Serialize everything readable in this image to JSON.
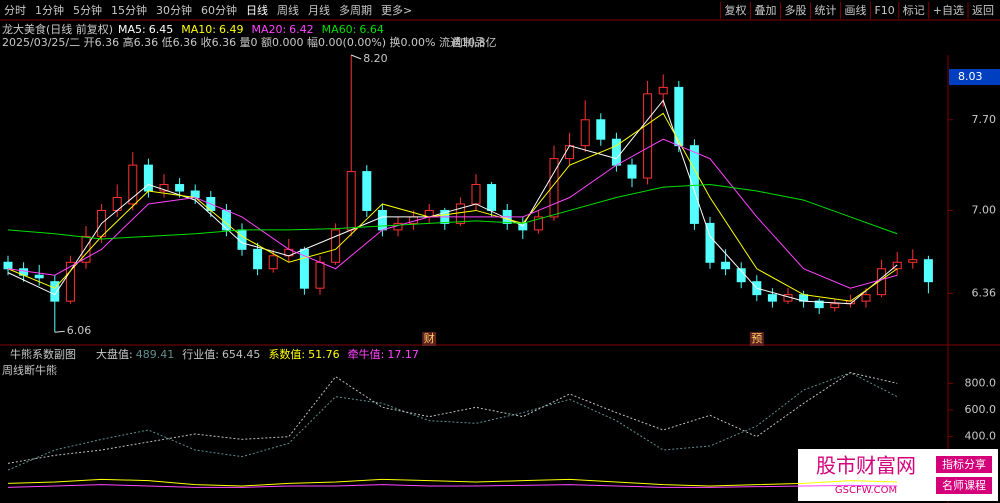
{
  "toolbar": {
    "periods": [
      "分时",
      "1分钟",
      "5分钟",
      "15分钟",
      "30分钟",
      "60分钟",
      "日线",
      "周线",
      "月线",
      "多周期",
      "更多>"
    ],
    "active": 6,
    "actions": [
      "复权",
      "叠加",
      "多股",
      "统计",
      "画线",
      "F10",
      "标记",
      "+自选",
      "返回"
    ]
  },
  "header": {
    "stock": "龙大美食(日线 前复权)",
    "ma_legend": [
      {
        "label": "MA5:",
        "value": 6.45,
        "color": "#ffffff"
      },
      {
        "label": "MA10:",
        "value": 6.49,
        "color": "#ffff00"
      },
      {
        "label": "MA20:",
        "value": 6.42,
        "color": "#ff44ff"
      },
      {
        "label": "MA60:",
        "value": 6.64,
        "color": "#00e000"
      }
    ],
    "quote": "2025/03/25/二 开6.36 高6.36 低6.36 收6.36 量0 额0.000 幅0.00(0.00%) 换0.00% 流通10.8亿",
    "sector": "肉制品"
  },
  "main": {
    "type": "candlestick",
    "ylim": [
      6.0,
      8.2
    ],
    "yticks": [
      {
        "value": 7.7,
        "label": "7.70"
      },
      {
        "value": 7.0,
        "label": "7.00"
      },
      6.36
    ],
    "price_tag": 8.03,
    "up_color": "#ff3232",
    "down_color": "#54ffff",
    "candles": [
      [
        6.6,
        6.65,
        6.5,
        6.55
      ],
      [
        6.55,
        6.6,
        6.45,
        6.5
      ],
      [
        6.5,
        6.58,
        6.42,
        6.48
      ],
      [
        6.45,
        6.5,
        6.06,
        6.3
      ],
      [
        6.3,
        6.65,
        6.28,
        6.6
      ],
      [
        6.6,
        6.88,
        6.55,
        6.8
      ],
      [
        6.8,
        7.05,
        6.75,
        7.0
      ],
      [
        7.0,
        7.2,
        6.95,
        7.1
      ],
      [
        7.05,
        7.45,
        7.0,
        7.35
      ],
      [
        7.35,
        7.4,
        7.1,
        7.15
      ],
      [
        7.15,
        7.28,
        7.1,
        7.2
      ],
      [
        7.2,
        7.25,
        7.1,
        7.15
      ],
      [
        7.15,
        7.2,
        7.05,
        7.1
      ],
      [
        7.1,
        7.15,
        6.95,
        7.0
      ],
      [
        7.0,
        7.05,
        6.8,
        6.85
      ],
      [
        6.85,
        6.9,
        6.65,
        6.7
      ],
      [
        6.7,
        6.75,
        6.5,
        6.55
      ],
      [
        6.55,
        6.7,
        6.52,
        6.65
      ],
      [
        6.65,
        6.78,
        6.6,
        6.7
      ],
      [
        6.7,
        6.72,
        6.35,
        6.4
      ],
      [
        6.4,
        6.65,
        6.35,
        6.6
      ],
      [
        6.6,
        6.9,
        6.58,
        6.85
      ],
      [
        6.85,
        8.2,
        6.8,
        7.3
      ],
      [
        7.3,
        7.35,
        6.95,
        7.0
      ],
      [
        7.0,
        7.05,
        6.8,
        6.85
      ],
      [
        6.85,
        6.95,
        6.8,
        6.9
      ],
      [
        6.9,
        7.0,
        6.85,
        6.95
      ],
      [
        6.95,
        7.05,
        6.9,
        7.0
      ],
      [
        7.0,
        7.02,
        6.85,
        6.9
      ],
      [
        6.9,
        7.1,
        6.88,
        7.05
      ],
      [
        7.05,
        7.28,
        7.0,
        7.2
      ],
      [
        7.2,
        7.22,
        6.95,
        7.0
      ],
      [
        7.0,
        7.05,
        6.85,
        6.9
      ],
      [
        6.9,
        6.95,
        6.78,
        6.85
      ],
      [
        6.85,
        7.0,
        6.82,
        6.95
      ],
      [
        6.95,
        7.5,
        6.92,
        7.4
      ],
      [
        7.4,
        7.6,
        7.35,
        7.5
      ],
      [
        7.5,
        7.85,
        7.45,
        7.7
      ],
      [
        7.7,
        7.75,
        7.5,
        7.55
      ],
      [
        7.55,
        7.6,
        7.3,
        7.35
      ],
      [
        7.35,
        7.4,
        7.18,
        7.25
      ],
      [
        7.25,
        8.0,
        7.2,
        7.9
      ],
      [
        7.9,
        8.05,
        7.8,
        7.95
      ],
      [
        7.95,
        8.0,
        7.45,
        7.5
      ],
      [
        7.5,
        7.55,
        6.85,
        6.9
      ],
      [
        6.9,
        6.95,
        6.55,
        6.6
      ],
      [
        6.6,
        6.7,
        6.5,
        6.55
      ],
      [
        6.55,
        6.6,
        6.4,
        6.45
      ],
      [
        6.45,
        6.5,
        6.3,
        6.35
      ],
      [
        6.35,
        6.4,
        6.25,
        6.3
      ],
      [
        6.3,
        6.4,
        6.28,
        6.35
      ],
      [
        6.35,
        6.38,
        6.25,
        6.3
      ],
      [
        6.3,
        6.32,
        6.2,
        6.25
      ],
      [
        6.25,
        6.32,
        6.22,
        6.28
      ],
      [
        6.28,
        6.35,
        6.25,
        6.3
      ],
      [
        6.3,
        6.4,
        6.25,
        6.35
      ],
      [
        6.35,
        6.62,
        6.33,
        6.55
      ],
      [
        6.55,
        6.68,
        6.5,
        6.6
      ],
      [
        6.6,
        6.7,
        6.55,
        6.62
      ],
      [
        6.62,
        6.65,
        6.36,
        6.45
      ]
    ],
    "ma": {
      "x": [
        0,
        3,
        6,
        9,
        12,
        15,
        18,
        21,
        24,
        27,
        30,
        33,
        36,
        39,
        42,
        45,
        48,
        51,
        54,
        57
      ],
      "series": [
        {
          "color": "#ffffff",
          "values": [
            6.52,
            6.35,
            6.9,
            7.2,
            7.08,
            6.75,
            6.65,
            6.8,
            6.95,
            6.95,
            7.05,
            6.88,
            7.5,
            7.4,
            7.85,
            6.8,
            6.4,
            6.3,
            6.28,
            6.58
          ]
        },
        {
          "color": "#ffff00",
          "values": [
            6.55,
            6.4,
            6.8,
            7.15,
            7.1,
            6.8,
            6.6,
            6.7,
            7.05,
            6.95,
            7.0,
            6.9,
            7.35,
            7.5,
            7.75,
            7.1,
            6.55,
            6.35,
            6.3,
            6.55
          ]
        },
        {
          "color": "#ff44ff",
          "values": [
            6.55,
            6.5,
            6.7,
            7.05,
            7.1,
            6.95,
            6.7,
            6.55,
            6.85,
            6.95,
            6.95,
            6.95,
            7.1,
            7.35,
            7.55,
            7.4,
            6.95,
            6.55,
            6.4,
            6.5
          ]
        },
        {
          "color": "#00e000",
          "values": [
            6.85,
            6.82,
            6.78,
            6.8,
            6.82,
            6.85,
            6.85,
            6.86,
            6.88,
            6.9,
            6.92,
            6.9,
            7.0,
            7.1,
            7.18,
            7.2,
            7.15,
            7.08,
            6.95,
            6.82
          ]
        }
      ]
    },
    "annotations": [
      {
        "index": 22,
        "value": 8.2,
        "label": "8.20"
      },
      {
        "index": 3,
        "value": 6.06
      }
    ],
    "markers": [
      {
        "index": 27,
        "label": "财"
      },
      {
        "index": 48,
        "label": "预"
      }
    ]
  },
  "sub": {
    "type": "line",
    "title": "牛熊系数副图",
    "subtitle": "周线断牛熊",
    "ylim": [
      0,
      1050
    ],
    "yticks": [
      {
        "value": 800,
        "label": "800.0"
      },
      {
        "value": 600,
        "label": "600.0"
      },
      {
        "value": 400,
        "label": "400.0"
      }
    ],
    "legend": [
      {
        "label": "大盘值:",
        "value": 489.41,
        "color": "#5f8f8f"
      },
      {
        "label": "行业值:",
        "value": 654.45,
        "color": "#c0c0c0"
      },
      {
        "label": "系数值:",
        "value": 51.76,
        "color": "#ffff00"
      },
      {
        "label": "牵牛值:",
        "value": 17.17,
        "color": "#ff44ff"
      }
    ],
    "x": [
      0,
      3,
      6,
      9,
      12,
      15,
      18,
      21,
      24,
      27,
      30,
      33,
      36,
      39,
      42,
      45,
      48,
      51,
      54,
      57
    ],
    "series": [
      {
        "dash": true,
        "values": [
          150,
          300,
          380,
          450,
          300,
          250,
          350,
          700,
          650,
          520,
          500,
          580,
          680,
          520,
          300,
          330,
          480,
          750,
          880,
          700
        ]
      },
      {
        "dash": true,
        "values": [
          200,
          260,
          300,
          360,
          420,
          380,
          400,
          850,
          620,
          550,
          620,
          550,
          720,
          580,
          450,
          560,
          400,
          650,
          880,
          800
        ]
      },
      {
        "dash": false,
        "values": [
          50,
          60,
          80,
          70,
          40,
          30,
          50,
          60,
          80,
          70,
          60,
          70,
          80,
          60,
          40,
          30,
          40,
          50,
          70,
          60
        ]
      },
      {
        "dash": false,
        "values": [
          20,
          30,
          40,
          30,
          20,
          20,
          30,
          30,
          40,
          30,
          30,
          35,
          40,
          30,
          20,
          20,
          25,
          30,
          35,
          30
        ]
      }
    ]
  },
  "watermark": {
    "brand": "股市财富网",
    "site": "GSCFW.COM",
    "tags": [
      "指标分享",
      "名师课程"
    ]
  }
}
